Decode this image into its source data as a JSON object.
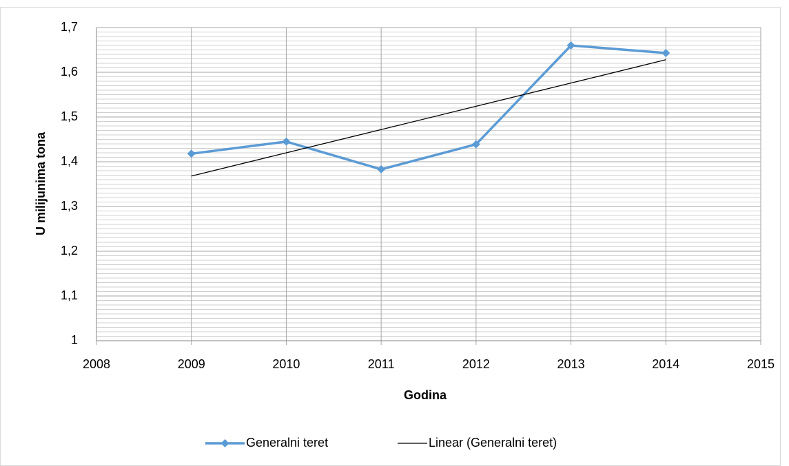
{
  "chart_data": {
    "type": "line",
    "x_label": "Godina",
    "y_label": "U milijunima tona",
    "x": [
      2009,
      2010,
      2011,
      2012,
      2013,
      2014
    ],
    "series": [
      {
        "name": "Generalni teret",
        "color": "#5b9bd5",
        "marker": "diamond",
        "values": [
          1.418,
          1.445,
          1.383,
          1.439,
          1.66,
          1.643
        ]
      },
      {
        "name": "Linear (Generalni teret)",
        "color": "#000000",
        "values": [
          1.368,
          1.42,
          1.472,
          1.524,
          1.576,
          1.628
        ]
      }
    ],
    "xlim": [
      2008,
      2015
    ],
    "xticks": [
      2008,
      2009,
      2010,
      2011,
      2012,
      2013,
      2014,
      2015
    ],
    "ylim": [
      1,
      1.7
    ],
    "yticks": [
      1,
      {
        "value": 1.1,
        "label": "1,1"
      },
      {
        "value": 1.2,
        "label": "1,2"
      },
      {
        "value": 1.3,
        "label": "1,3"
      },
      {
        "value": 1.4,
        "label": "1,4"
      },
      {
        "value": 1.5,
        "label": "1,5"
      },
      {
        "value": 1.6,
        "label": "1,6"
      },
      {
        "value": 1.7,
        "label": "1,7"
      }
    ],
    "yminorticks": [
      1.01,
      1.02,
      1.03,
      1.04,
      1.05,
      1.06,
      1.07,
      1.08,
      1.09,
      1.11,
      1.12,
      1.13,
      1.14,
      1.15,
      1.16,
      1.17,
      1.18,
      1.19,
      1.21,
      1.22,
      1.23,
      1.24,
      1.25,
      1.26,
      1.27,
      1.28,
      1.29,
      1.31,
      1.32,
      1.33,
      1.34,
      1.35,
      1.36,
      1.37,
      1.38,
      1.39,
      1.41,
      1.42,
      1.43,
      1.44,
      1.45,
      1.46,
      1.47,
      1.48,
      1.49,
      1.51,
      1.52,
      1.53,
      1.54,
      1.55,
      1.56,
      1.57,
      1.58,
      1.59,
      1.61,
      1.62,
      1.63,
      1.64,
      1.65,
      1.66,
      1.67,
      1.68,
      1.69
    ],
    "grid": true,
    "legend": "bottom"
  }
}
